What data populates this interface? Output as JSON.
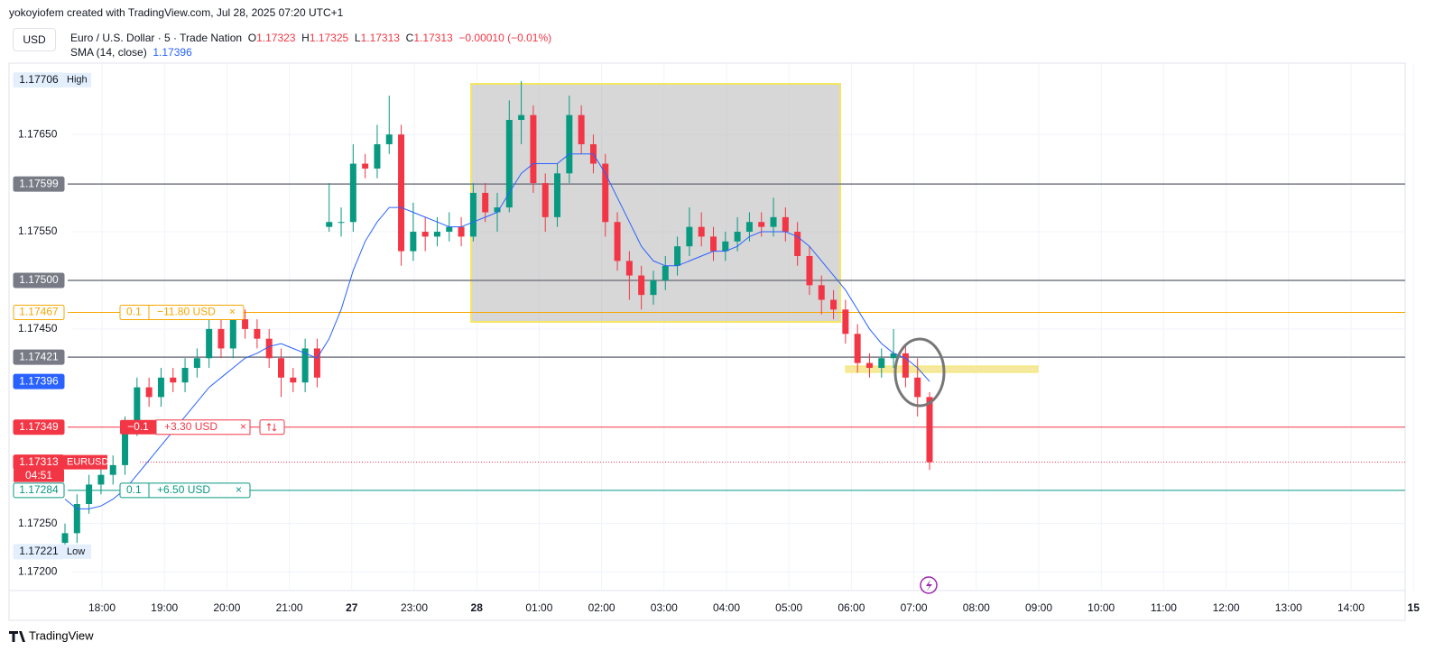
{
  "header": {
    "credit": "yokoyiofem created with TradingView.com, Jul 28, 2025 07:20 UTC+1",
    "currency": "USD",
    "symbol": "Euro / U.S. Dollar · 5 · Trade Nation",
    "o_label": "O",
    "o": "1.17323",
    "h_label": "H",
    "h": "1.17325",
    "l_label": "L",
    "l": "1.17313",
    "c_label": "C",
    "c": "1.17313",
    "change": "−0.00010 (−0.01%)",
    "indicator": "SMA (14, close)",
    "indicator_value": "1.17396"
  },
  "footer": "TradingView",
  "chart_data": {
    "type": "candlestick",
    "ylim": [
      1.17181,
      1.17716
    ],
    "yticks": [
      {
        "value": 1.1765,
        "label": "1.17650"
      },
      {
        "value": 1.1755,
        "label": "1.17550"
      },
      {
        "value": 1.1745,
        "label": "1.17450"
      },
      {
        "value": 1.1725,
        "label": "1.17250"
      },
      {
        "value": 1.172,
        "label": "1.17200"
      }
    ],
    "time_labels": [
      "18:00",
      "19:00",
      "20:00",
      "21:00",
      "27",
      "23:00",
      "28",
      "01:00",
      "02:00",
      "03:00",
      "04:00",
      "05:00",
      "06:00",
      "07:00",
      "08:00",
      "09:00",
      "10:00",
      "11:00",
      "12:00",
      "13:00",
      "14:00",
      "15"
    ],
    "up_color": "#089981",
    "down_color": "#f23645",
    "candles": [
      [
        1.1723,
        1.1725,
        1.1722,
        1.1724
      ],
      [
        1.1724,
        1.1728,
        1.1723,
        1.1727
      ],
      [
        1.1727,
        1.173,
        1.1726,
        1.1729
      ],
      [
        1.1729,
        1.1731,
        1.1728,
        1.173
      ],
      [
        1.173,
        1.1732,
        1.1729,
        1.1731
      ],
      [
        1.1731,
        1.1736,
        1.173,
        1.1735
      ],
      [
        1.1735,
        1.174,
        1.1734,
        1.1739
      ],
      [
        1.1739,
        1.174,
        1.1737,
        1.1738
      ],
      [
        1.1738,
        1.1741,
        1.1737,
        1.174
      ],
      [
        1.174,
        1.1741,
        1.17385,
        1.17395
      ],
      [
        1.17395,
        1.1742,
        1.17385,
        1.1741
      ],
      [
        1.1741,
        1.1743,
        1.174,
        1.1742
      ],
      [
        1.1742,
        1.1746,
        1.1741,
        1.1745
      ],
      [
        1.1745,
        1.1746,
        1.1742,
        1.1743
      ],
      [
        1.1743,
        1.17475,
        1.1742,
        1.1746
      ],
      [
        1.1746,
        1.1747,
        1.1744,
        1.1745
      ],
      [
        1.1745,
        1.1746,
        1.1743,
        1.1744
      ],
      [
        1.1744,
        1.1745,
        1.1741,
        1.1742
      ],
      [
        1.1742,
        1.1743,
        1.1738,
        1.174
      ],
      [
        1.174,
        1.1741,
        1.17385,
        1.17395
      ],
      [
        1.17395,
        1.1744,
        1.17385,
        1.1743
      ],
      [
        1.1743,
        1.1744,
        1.1739,
        1.174
      ],
      [
        1.17555,
        1.176,
        1.1755,
        1.1756
      ],
      [
        1.1756,
        1.17575,
        1.17545,
        1.1756
      ],
      [
        1.1756,
        1.1764,
        1.1755,
        1.1762
      ],
      [
        1.1762,
        1.1763,
        1.17605,
        1.17615
      ],
      [
        1.17615,
        1.1766,
        1.17605,
        1.1764
      ],
      [
        1.1764,
        1.1769,
        1.1763,
        1.1765
      ],
      [
        1.1765,
        1.1766,
        1.17515,
        1.1753
      ],
      [
        1.1753,
        1.1758,
        1.1752,
        1.1755
      ],
      [
        1.1755,
        1.17565,
        1.1753,
        1.17545
      ],
      [
        1.17545,
        1.17565,
        1.17535,
        1.1755
      ],
      [
        1.1755,
        1.1757,
        1.1754,
        1.17555
      ],
      [
        1.17555,
        1.17565,
        1.17535,
        1.17545
      ],
      [
        1.17545,
        1.176,
        1.1754,
        1.1759
      ],
      [
        1.1759,
        1.176,
        1.1756,
        1.1757
      ],
      [
        1.1757,
        1.1759,
        1.1755,
        1.17575
      ],
      [
        1.17575,
        1.17685,
        1.1757,
        1.17665
      ],
      [
        1.17665,
        1.17705,
        1.1764,
        1.1767
      ],
      [
        1.1767,
        1.1768,
        1.1759,
        1.176
      ],
      [
        1.176,
        1.1761,
        1.1755,
        1.17565
      ],
      [
        1.17565,
        1.1762,
        1.17555,
        1.1761
      ],
      [
        1.1761,
        1.1769,
        1.176,
        1.1767
      ],
      [
        1.1767,
        1.1768,
        1.1763,
        1.1764
      ],
      [
        1.1764,
        1.1765,
        1.1761,
        1.1762
      ],
      [
        1.1762,
        1.1763,
        1.17545,
        1.1756
      ],
      [
        1.1756,
        1.1757,
        1.1751,
        1.1752
      ],
      [
        1.1752,
        1.1753,
        1.1748,
        1.17505
      ],
      [
        1.17505,
        1.17515,
        1.1747,
        1.17485
      ],
      [
        1.17485,
        1.1751,
        1.17475,
        1.175
      ],
      [
        1.175,
        1.17525,
        1.1749,
        1.17515
      ],
      [
        1.17515,
        1.17545,
        1.17505,
        1.17535
      ],
      [
        1.17535,
        1.17575,
        1.17525,
        1.17555
      ],
      [
        1.17555,
        1.1757,
        1.17535,
        1.17545
      ],
      [
        1.17545,
        1.17555,
        1.1752,
        1.1753
      ],
      [
        1.1753,
        1.1755,
        1.1752,
        1.1754
      ],
      [
        1.1754,
        1.17565,
        1.1753,
        1.1755
      ],
      [
        1.1755,
        1.1757,
        1.1754,
        1.1756
      ],
      [
        1.1756,
        1.1757,
        1.17545,
        1.17555
      ],
      [
        1.17555,
        1.17585,
        1.17545,
        1.17565
      ],
      [
        1.17565,
        1.17575,
        1.1754,
        1.1755
      ],
      [
        1.1755,
        1.1756,
        1.17515,
        1.17525
      ],
      [
        1.17525,
        1.17535,
        1.17485,
        1.17495
      ],
      [
        1.17495,
        1.17505,
        1.17465,
        1.1748
      ],
      [
        1.1748,
        1.1749,
        1.1746,
        1.1747
      ],
      [
        1.1747,
        1.1748,
        1.17435,
        1.17445
      ],
      [
        1.17445,
        1.17455,
        1.17405,
        1.17415
      ],
      [
        1.17415,
        1.17425,
        1.174,
        1.1741
      ],
      [
        1.1741,
        1.1743,
        1.174,
        1.1742
      ],
      [
        1.1742,
        1.1745,
        1.1741,
        1.17425
      ],
      [
        1.17425,
        1.17435,
        1.1739,
        1.174
      ],
      [
        1.174,
        1.1742,
        1.1736,
        1.1738
      ],
      [
        1.1738,
        1.17385,
        1.17305,
        1.17313
      ]
    ],
    "sma": {
      "name": "SMA (14, close)",
      "color": "#2962ff",
      "values": [
        1.17275,
        1.17265,
        1.17265,
        1.17268,
        1.17275,
        1.17285,
        1.173,
        1.17315,
        1.1733,
        1.17345,
        1.1736,
        1.17375,
        1.1739,
        1.174,
        1.1741,
        1.1742,
        1.17425,
        1.17432,
        1.17435,
        1.1743,
        1.17425,
        1.1742,
        1.1744,
        1.1747,
        1.1751,
        1.1754,
        1.1756,
        1.17575,
        1.17575,
        1.1757,
        1.17565,
        1.1756,
        1.17555,
        1.17555,
        1.1756,
        1.17565,
        1.1757,
        1.1759,
        1.1761,
        1.1762,
        1.1762,
        1.1762,
        1.1763,
        1.1763,
        1.1763,
        1.1761,
        1.17585,
        1.1756,
        1.17535,
        1.1752,
        1.17515,
        1.17515,
        1.1752,
        1.17525,
        1.1753,
        1.1753,
        1.17535,
        1.17545,
        1.1755,
        1.1755,
        1.1755,
        1.17545,
        1.17535,
        1.1752,
        1.17505,
        1.1749,
        1.1747,
        1.1745,
        1.17435,
        1.17425,
        1.1742,
        1.1741,
        1.17396
      ]
    },
    "levels": [
      {
        "value": 1.17706,
        "label": "1.17706",
        "tag": "High",
        "style": "hilo"
      },
      {
        "value": 1.17599,
        "label": "1.17599",
        "style": "gray",
        "line": true
      },
      {
        "value": 1.175,
        "label": "1.17500",
        "style": "gray",
        "line": true
      },
      {
        "value": 1.17467,
        "label": "1.17467",
        "style": "orange",
        "line": true
      },
      {
        "value": 1.17421,
        "label": "1.17421",
        "style": "gray",
        "line": true
      },
      {
        "value": 1.17396,
        "label": "1.17396",
        "style": "blue"
      },
      {
        "value": 1.17349,
        "label": "1.17349",
        "style": "red",
        "line": true
      },
      {
        "value": 1.17313,
        "label": "1.17313",
        "tag": "EURUSD",
        "sub": "04:51",
        "style": "last",
        "line": true
      },
      {
        "value": 1.17284,
        "label": "1.17284",
        "style": "green",
        "line": true
      },
      {
        "value": 1.17221,
        "label": "1.17221",
        "tag": "Low",
        "style": "hilo"
      }
    ],
    "positions": [
      {
        "level": 1.17467,
        "qty": "0.1",
        "pnl": "−11.80 USD",
        "style": "orange"
      },
      {
        "level": 1.17349,
        "qty": "−0.1",
        "pnl": "+3.30 USD",
        "style": "red"
      },
      {
        "level": 1.17284,
        "qty": "0.1",
        "pnl": "+6.50 USD",
        "style": "green"
      }
    ]
  }
}
